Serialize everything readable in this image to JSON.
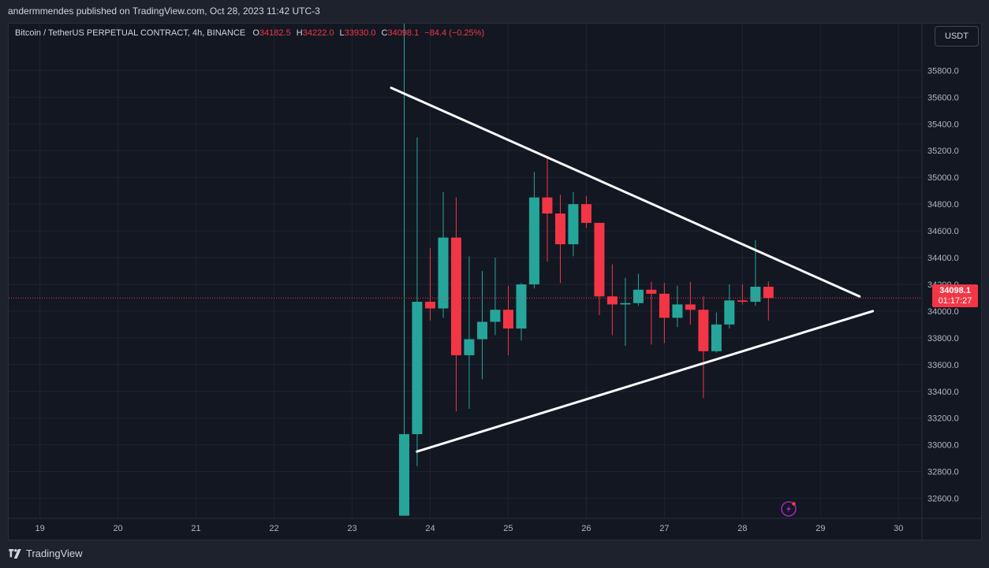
{
  "header": {
    "published_by": "andermmendes published on TradingView.com, Oct 28, 2023 11:42 UTC-3"
  },
  "legend": {
    "symbol": "Bitcoin / TetherUS PERPETUAL CONTRACT, 4h, BINANCE",
    "o_label": "O",
    "o_value": "34182.5",
    "h_label": "H",
    "h_value": "34222.0",
    "l_label": "L",
    "l_value": "33930.0",
    "c_label": "C",
    "c_value": "34098.1",
    "change": "−84.4 (−0.25%)"
  },
  "currency_button": "USDT",
  "last_price": {
    "price": "34098.1",
    "countdown": "01:17:27",
    "value": 34098.1
  },
  "footer": {
    "brand": "TradingView",
    "logo_icon": "tradingview-logo-icon"
  },
  "colors": {
    "up": "#26a69a",
    "down": "#f23645",
    "background": "#131722",
    "trendline": "#ffffff"
  },
  "chart_data": {
    "type": "candlestick",
    "x_unit": "day of month",
    "y_unit": "USDT",
    "x_range": [
      18.6,
      30.3
    ],
    "y_range": [
      32450,
      36150
    ],
    "x_ticks": [
      {
        "x": 19,
        "label": "19"
      },
      {
        "x": 20,
        "label": "20"
      },
      {
        "x": 21,
        "label": "21"
      },
      {
        "x": 22,
        "label": "22"
      },
      {
        "x": 23,
        "label": "23"
      },
      {
        "x": 24,
        "label": "24"
      },
      {
        "x": 25,
        "label": "25"
      },
      {
        "x": 26,
        "label": "26"
      },
      {
        "x": 27,
        "label": "27"
      },
      {
        "x": 28,
        "label": "28"
      },
      {
        "x": 29,
        "label": "29"
      },
      {
        "x": 30,
        "label": "30"
      }
    ],
    "y_ticks": [
      {
        "v": 32600,
        "label": "32600.0"
      },
      {
        "v": 32800,
        "label": "32800.0"
      },
      {
        "v": 33000,
        "label": "33000.0"
      },
      {
        "v": 33200,
        "label": "33200.0"
      },
      {
        "v": 33400,
        "label": "33400.0"
      },
      {
        "v": 33600,
        "label": "33600.0"
      },
      {
        "v": 33800,
        "label": "33800.0"
      },
      {
        "v": 34000,
        "label": "34000.0"
      },
      {
        "v": 34200,
        "label": "34200.0"
      },
      {
        "v": 34400,
        "label": "34400.0"
      },
      {
        "v": 34600,
        "label": "34600.0"
      },
      {
        "v": 34800,
        "label": "34800.0"
      },
      {
        "v": 35000,
        "label": "35000.0"
      },
      {
        "v": 35200,
        "label": "35200.0"
      },
      {
        "v": 35400,
        "label": "35400.0"
      },
      {
        "v": 35600,
        "label": "35600.0"
      },
      {
        "v": 35800,
        "label": "35800.0"
      }
    ],
    "grid": true,
    "candles": [
      {
        "x": 23.667,
        "o": 32470,
        "h": 36200,
        "l": 32470,
        "c": 33080
      },
      {
        "x": 23.833,
        "o": 33080,
        "h": 35300,
        "l": 32840,
        "c": 34070
      },
      {
        "x": 24.0,
        "o": 34070,
        "h": 34470,
        "l": 33930,
        "c": 34020
      },
      {
        "x": 24.167,
        "o": 34020,
        "h": 34890,
        "l": 33950,
        "c": 34550
      },
      {
        "x": 24.333,
        "o": 34550,
        "h": 34850,
        "l": 33250,
        "c": 33670
      },
      {
        "x": 24.5,
        "o": 33670,
        "h": 34410,
        "l": 33270,
        "c": 33790
      },
      {
        "x": 24.667,
        "o": 33790,
        "h": 34300,
        "l": 33490,
        "c": 33920
      },
      {
        "x": 24.833,
        "o": 33920,
        "h": 34400,
        "l": 33820,
        "c": 34010
      },
      {
        "x": 25.0,
        "o": 34010,
        "h": 34190,
        "l": 33670,
        "c": 33870
      },
      {
        "x": 25.167,
        "o": 33870,
        "h": 34210,
        "l": 33780,
        "c": 34200
      },
      {
        "x": 25.333,
        "o": 34200,
        "h": 35040,
        "l": 34170,
        "c": 34850
      },
      {
        "x": 25.5,
        "o": 34850,
        "h": 35160,
        "l": 34370,
        "c": 34730
      },
      {
        "x": 25.667,
        "o": 34730,
        "h": 34870,
        "l": 34210,
        "c": 34500
      },
      {
        "x": 25.833,
        "o": 34500,
        "h": 34890,
        "l": 34410,
        "c": 34800
      },
      {
        "x": 26.0,
        "o": 34800,
        "h": 34860,
        "l": 34620,
        "c": 34660
      },
      {
        "x": 26.167,
        "o": 34660,
        "h": 34660,
        "l": 33970,
        "c": 34110
      },
      {
        "x": 26.333,
        "o": 34110,
        "h": 34350,
        "l": 33820,
        "c": 34050
      },
      {
        "x": 26.5,
        "o": 34050,
        "h": 34250,
        "l": 33740,
        "c": 34060
      },
      {
        "x": 26.667,
        "o": 34060,
        "h": 34280,
        "l": 34040,
        "c": 34160
      },
      {
        "x": 26.833,
        "o": 34160,
        "h": 34220,
        "l": 33750,
        "c": 34130
      },
      {
        "x": 27.0,
        "o": 34130,
        "h": 34210,
        "l": 33760,
        "c": 33950
      },
      {
        "x": 27.167,
        "o": 33950,
        "h": 34190,
        "l": 33880,
        "c": 34050
      },
      {
        "x": 27.333,
        "o": 34050,
        "h": 34220,
        "l": 33900,
        "c": 34010
      },
      {
        "x": 27.5,
        "o": 34010,
        "h": 34110,
        "l": 33350,
        "c": 33700
      },
      {
        "x": 27.667,
        "o": 33700,
        "h": 33990,
        "l": 33690,
        "c": 33900
      },
      {
        "x": 27.833,
        "o": 33900,
        "h": 34200,
        "l": 33870,
        "c": 34080
      },
      {
        "x": 28.0,
        "o": 34080,
        "h": 34200,
        "l": 34050,
        "c": 34070
      },
      {
        "x": 28.167,
        "o": 34070,
        "h": 34530,
        "l": 34040,
        "c": 34182.5
      },
      {
        "x": 28.333,
        "o": 34182.5,
        "h": 34222,
        "l": 33930,
        "c": 34098.1
      }
    ],
    "trendlines": [
      {
        "x1": 23.5,
        "y1": 35670,
        "x2": 29.5,
        "y2": 34110
      },
      {
        "x1": 23.83,
        "y1": 32950,
        "x2": 29.67,
        "y2": 34000
      }
    ]
  }
}
